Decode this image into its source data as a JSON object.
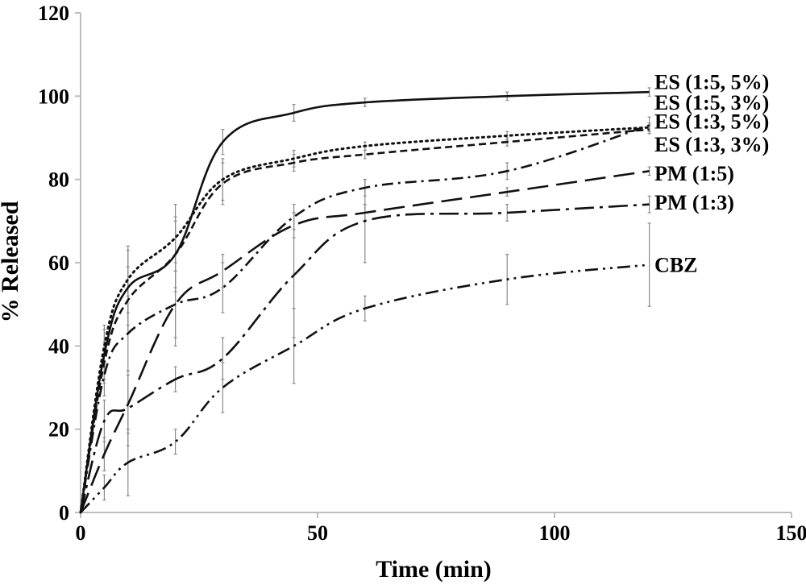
{
  "chart_data": {
    "type": "line",
    "title": "",
    "xlabel": "Time (min)",
    "ylabel": "% Released",
    "xlim": [
      0,
      150
    ],
    "ylim": [
      0,
      120
    ],
    "xticks": [
      "0",
      "50",
      "100",
      "150"
    ],
    "yticks": [
      "0",
      "20",
      "40",
      "60",
      "80",
      "100",
      "120"
    ],
    "grid": false,
    "legend": "series labels printed at the right end of each curve",
    "series": [
      {
        "name": "ES (1:5, 5%)",
        "dash": "solid",
        "x": [
          0,
          5,
          10,
          20,
          30,
          45,
          60,
          90,
          120
        ],
        "y": [
          0,
          38,
          54,
          62,
          89,
          96,
          98.5,
          100,
          101
        ],
        "err": [
          0,
          6,
          9,
          8,
          3,
          2,
          1,
          1,
          1
        ]
      },
      {
        "name": "ES (1:5, 3%)",
        "dash": "dotted",
        "x": [
          0,
          5,
          10,
          20,
          30,
          45,
          60,
          90,
          120
        ],
        "y": [
          0,
          40,
          56,
          66,
          80,
          85,
          88,
          90.5,
          92.5
        ],
        "err": [
          0,
          5,
          8,
          8,
          5,
          2,
          1,
          1,
          1
        ]
      },
      {
        "name": "ES (1:3, 5%)",
        "dash": "dash-dot",
        "x": [
          0,
          5,
          10,
          20,
          30,
          45,
          60,
          90,
          120
        ],
        "y": [
          0,
          33,
          43,
          50,
          54,
          71,
          78,
          82,
          93
        ],
        "err": [
          0,
          5,
          9,
          10,
          6,
          3,
          2,
          2,
          2
        ]
      },
      {
        "name": "ES (1:3, 3%)",
        "dash": "short-dash",
        "x": [
          0,
          5,
          10,
          20,
          30,
          45,
          60,
          90,
          120
        ],
        "y": [
          0,
          36,
          51,
          62,
          79,
          84,
          86,
          89,
          92
        ],
        "err": [
          0,
          5,
          8,
          9,
          5,
          2,
          1,
          1,
          1
        ]
      },
      {
        "name": "PM (1:5)",
        "dash": "long-dash",
        "x": [
          0,
          5,
          10,
          20,
          30,
          45,
          60,
          90,
          120
        ],
        "y": [
          0,
          14,
          26,
          50,
          58,
          69,
          72,
          77,
          82
        ],
        "err": [
          0,
          4,
          7,
          8,
          4,
          3,
          2,
          1,
          1
        ]
      },
      {
        "name": "PM (1:3)",
        "dash": "long-dash-dot",
        "x": [
          0,
          5,
          10,
          20,
          30,
          45,
          60,
          90,
          120
        ],
        "y": [
          0,
          22,
          25,
          32,
          37,
          57,
          70,
          72,
          74
        ],
        "err": [
          0,
          5,
          9,
          3,
          5,
          15,
          10,
          2,
          2
        ]
      },
      {
        "name": "CBZ",
        "dash": "dash-dot-dot",
        "x": [
          0,
          5,
          10,
          20,
          30,
          45,
          60,
          90,
          120
        ],
        "y": [
          0,
          6,
          12,
          17,
          30,
          40,
          49,
          56,
          59.5
        ],
        "err": [
          0,
          3,
          8,
          3,
          6,
          9,
          3,
          6,
          10
        ]
      }
    ],
    "label_y": [
      103.5,
      98.5,
      94,
      88.5,
      81.5,
      74.5,
      59.5
    ]
  }
}
